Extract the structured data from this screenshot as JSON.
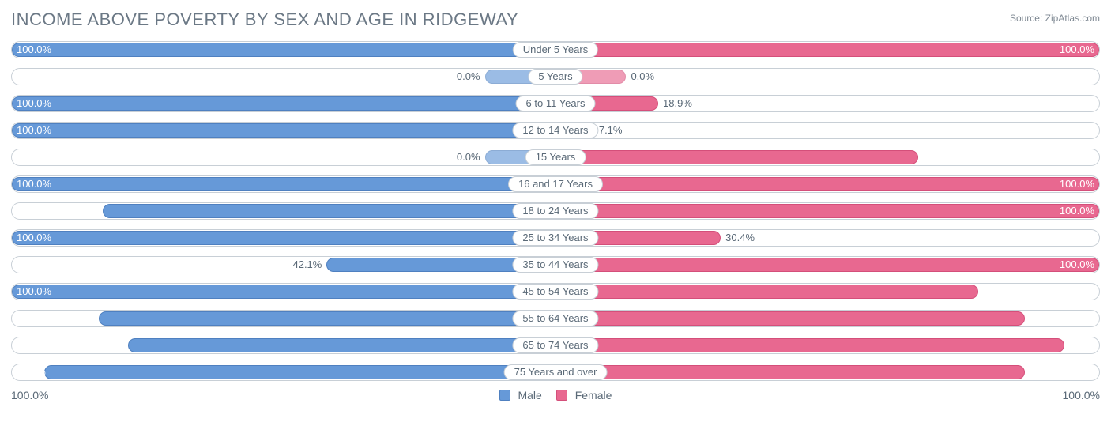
{
  "title": "INCOME ABOVE POVERTY BY SEX AND AGE IN RIDGEWAY",
  "source": "Source: ZipAtlas.com",
  "colors": {
    "male_fill": "#6699d8",
    "male_border": "#4f80c0",
    "female_fill": "#e86890",
    "female_border": "#d44f7a",
    "track_border": "#c8cfd6",
    "text": "#5a6977",
    "bg": "#ffffff"
  },
  "chart": {
    "type": "diverging-bar",
    "zero_bar_min_pct": 13,
    "bar_opacity_zero": 0.65,
    "rows": [
      {
        "age": "Under 5 Years",
        "male": 100.0,
        "female": 100.0
      },
      {
        "age": "5 Years",
        "male": 0.0,
        "female": 0.0
      },
      {
        "age": "6 to 11 Years",
        "male": 100.0,
        "female": 18.9
      },
      {
        "age": "12 to 14 Years",
        "male": 100.0,
        "female": 7.1
      },
      {
        "age": "15 Years",
        "male": 0.0,
        "female": 66.7
      },
      {
        "age": "16 and 17 Years",
        "male": 100.0,
        "female": 100.0
      },
      {
        "age": "18 to 24 Years",
        "male": 83.3,
        "female": 100.0
      },
      {
        "age": "25 to 34 Years",
        "male": 100.0,
        "female": 30.4
      },
      {
        "age": "35 to 44 Years",
        "male": 42.1,
        "female": 100.0
      },
      {
        "age": "45 to 54 Years",
        "male": 100.0,
        "female": 77.8
      },
      {
        "age": "55 to 64 Years",
        "male": 84.0,
        "female": 86.4
      },
      {
        "age": "65 to 74 Years",
        "male": 78.6,
        "female": 93.6
      },
      {
        "age": "75 Years and over",
        "male": 94.1,
        "female": 86.4
      }
    ]
  },
  "axis": {
    "left": "100.0%",
    "right": "100.0%"
  },
  "legend": {
    "male": "Male",
    "female": "Female"
  }
}
